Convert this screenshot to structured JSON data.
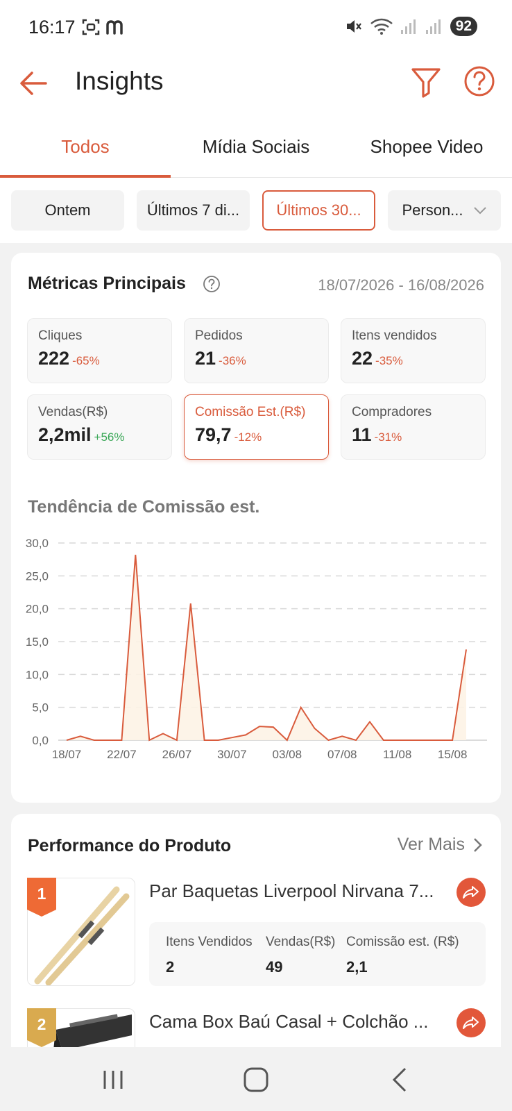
{
  "status": {
    "time": "16:17",
    "battery": "92"
  },
  "header": {
    "title": "Insights"
  },
  "tabs": [
    {
      "label": "Todos",
      "active": true
    },
    {
      "label": "Mídia Sociais",
      "active": false
    },
    {
      "label": "Shopee Video",
      "active": false
    }
  ],
  "periods": [
    {
      "label": "Ontem"
    },
    {
      "label": "Últimos 7 di..."
    },
    {
      "label": "Últimos 30..."
    },
    {
      "label": "Person..."
    }
  ],
  "metrics": {
    "title": "Métricas Principais",
    "date_range": "18/07/2026 - 16/08/2026",
    "items": [
      {
        "label": "Cliques",
        "value": "222",
        "change": "-65%"
      },
      {
        "label": "Pedidos",
        "value": "21",
        "change": "-36%"
      },
      {
        "label": "Itens vendidos",
        "value": "22",
        "change": "-35%"
      },
      {
        "label": "Vendas(R$)",
        "value": "2,2mil",
        "change": "+56%"
      },
      {
        "label": "Comissão Est.(R$)",
        "value": "79,7",
        "change": "-12%"
      },
      {
        "label": "Compradores",
        "value": "11",
        "change": "-31%"
      }
    ]
  },
  "chart_data": {
    "type": "area",
    "title": "Tendência de Comissão est.",
    "ylim": [
      0,
      30
    ],
    "yticks": [
      "0,0",
      "5,0",
      "10,0",
      "15,0",
      "20,0",
      "25,0",
      "30,0"
    ],
    "xticks": [
      "18/07",
      "22/07",
      "26/07",
      "30/07",
      "03/08",
      "07/08",
      "11/08",
      "15/08"
    ],
    "x": [
      "18/07",
      "19/07",
      "20/07",
      "21/07",
      "22/07",
      "23/07",
      "24/07",
      "25/07",
      "26/07",
      "27/07",
      "28/07",
      "29/07",
      "30/07",
      "31/07",
      "01/08",
      "02/08",
      "03/08",
      "04/08",
      "05/08",
      "06/08",
      "07/08",
      "08/08",
      "09/08",
      "10/08",
      "11/08",
      "12/08",
      "13/08",
      "14/08",
      "15/08",
      "16/08"
    ],
    "values": [
      0,
      0.6,
      0,
      0,
      0,
      28.2,
      0,
      1.0,
      0,
      20.8,
      0,
      0,
      0.4,
      0.8,
      2.1,
      2.0,
      0,
      5.0,
      1.8,
      0,
      0.6,
      0,
      2.8,
      0,
      0,
      0,
      0,
      0,
      0,
      13.8
    ],
    "grid": true,
    "color": "#d95b3c"
  },
  "products": {
    "title": "Performance do Produto",
    "see_more": "Ver Mais",
    "items": [
      {
        "rank": "1",
        "name": "Par Baquetas Liverpool Nirvana 7...",
        "stats": [
          {
            "label": "Itens Vendidos",
            "value": "2"
          },
          {
            "label": "Vendas(R$)",
            "value": "49"
          },
          {
            "label": "Comissão est. (R$)",
            "value": "2,1"
          }
        ]
      },
      {
        "rank": "2",
        "name": "Cama Box Baú Casal + Colchão ..."
      }
    ]
  },
  "colors": {
    "accent": "#d95b3c",
    "positive": "#3aa757"
  }
}
